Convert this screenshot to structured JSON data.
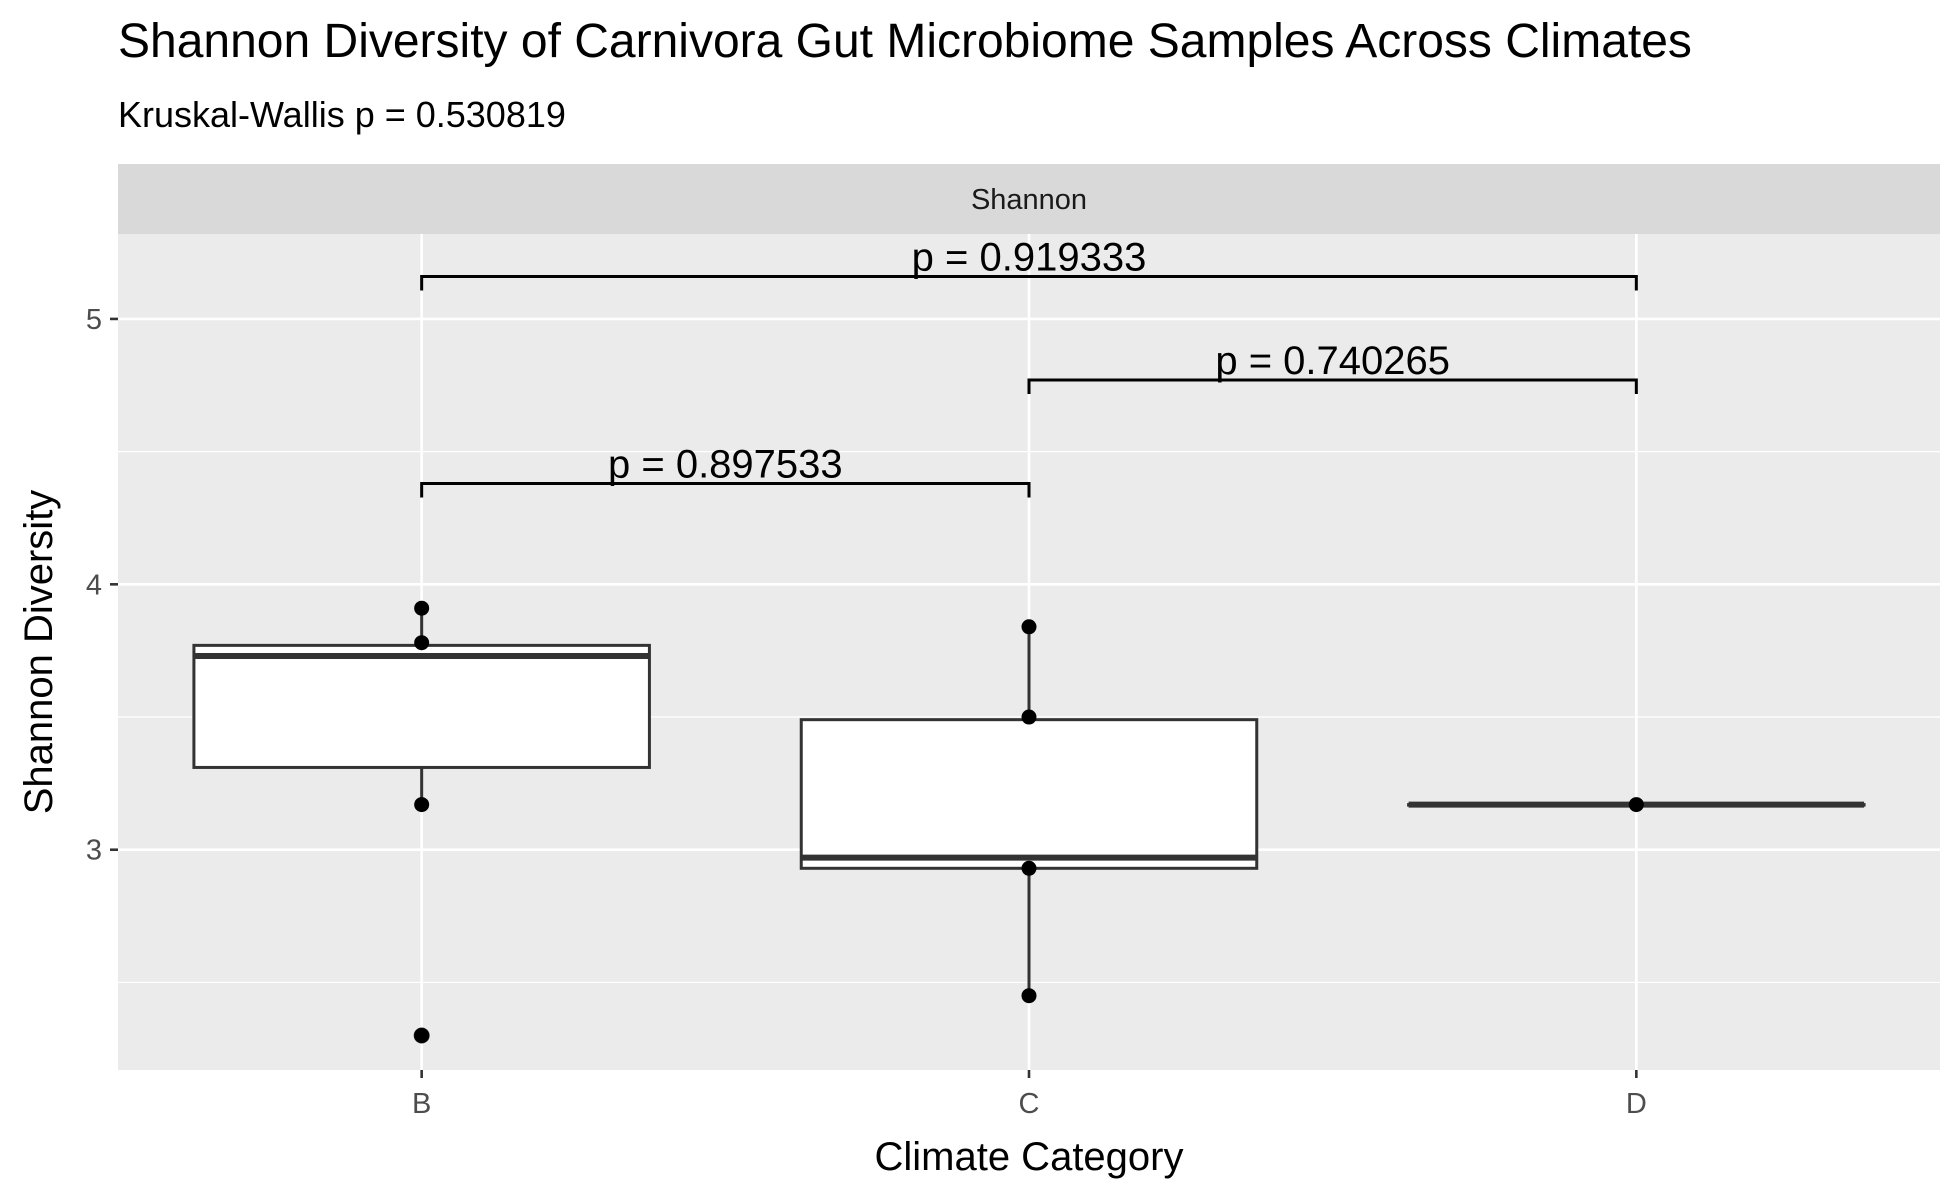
{
  "chart_data": {
    "type": "box",
    "title": "Shannon Diversity of Carnivora Gut Microbiome Samples Across Climates",
    "subtitle": "Kruskal-Wallis p = 0.530819",
    "facet_label": "Shannon",
    "xlabel": "Climate Category",
    "ylabel": "Shannon Diversity",
    "categories": [
      "B",
      "C",
      "D"
    ],
    "ylim": [
      2.17,
      5.32
    ],
    "yticks": [
      3,
      4,
      5
    ],
    "grid": true,
    "boxes": [
      {
        "category": "B",
        "q1": 3.31,
        "median": 3.73,
        "q3": 3.77,
        "whisker_low": 3.17,
        "whisker_high": 3.91,
        "outliers": [
          2.3
        ]
      },
      {
        "category": "C",
        "q1": 2.93,
        "median": 2.97,
        "q3": 3.49,
        "whisker_low": 2.45,
        "whisker_high": 3.84,
        "outliers": []
      },
      {
        "category": "D",
        "q1": 3.17,
        "median": 3.17,
        "q3": 3.17,
        "whisker_low": 3.17,
        "whisker_high": 3.17,
        "outliers": []
      }
    ],
    "points": [
      {
        "category": "B",
        "y": 3.91
      },
      {
        "category": "B",
        "y": 3.78
      },
      {
        "category": "B",
        "y": 3.17
      },
      {
        "category": "B",
        "y": 2.3
      },
      {
        "category": "C",
        "y": 3.84
      },
      {
        "category": "C",
        "y": 3.5
      },
      {
        "category": "C",
        "y": 2.93
      },
      {
        "category": "C",
        "y": 2.45
      },
      {
        "category": "D",
        "y": 3.17
      }
    ],
    "comparisons": [
      {
        "from": "B",
        "to": "C",
        "y": 4.38,
        "label": "p = 0.897533"
      },
      {
        "from": "C",
        "to": "D",
        "y": 4.77,
        "label": "p = 0.740265"
      },
      {
        "from": "B",
        "to": "D",
        "y": 5.16,
        "label": "p = 0.919333"
      }
    ],
    "colors": {
      "panel": "#EBEBEB",
      "strip": "#D9D9D9",
      "grid": "#FFFFFF",
      "box_fill": "#FFFFFF",
      "box_line": "#333333",
      "point": "#000000",
      "outlier": "#333333"
    }
  }
}
